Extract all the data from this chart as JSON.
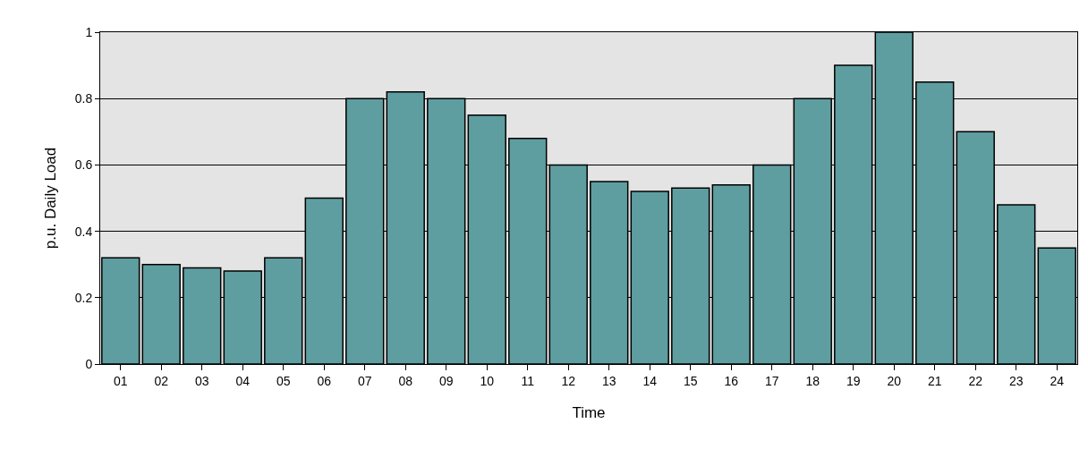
{
  "chart_data": {
    "type": "bar",
    "xlabel": "Time",
    "ylabel": "p.u. Daily Load",
    "categories": [
      "01",
      "02",
      "03",
      "04",
      "05",
      "06",
      "07",
      "08",
      "09",
      "10",
      "11",
      "12",
      "13",
      "14",
      "15",
      "16",
      "17",
      "18",
      "19",
      "20",
      "21",
      "22",
      "23",
      "24"
    ],
    "values": [
      0.32,
      0.3,
      0.29,
      0.28,
      0.32,
      0.5,
      0.8,
      0.82,
      0.8,
      0.75,
      0.68,
      0.6,
      0.55,
      0.52,
      0.53,
      0.54,
      0.6,
      0.8,
      0.9,
      1.0,
      0.85,
      0.7,
      0.48,
      0.35
    ],
    "color": "#5f9ea0",
    "ylim": [
      0,
      1
    ],
    "yticks": [
      0,
      0.2,
      0.4,
      0.6,
      0.8,
      1
    ],
    "grid": "y",
    "legend": false
  }
}
